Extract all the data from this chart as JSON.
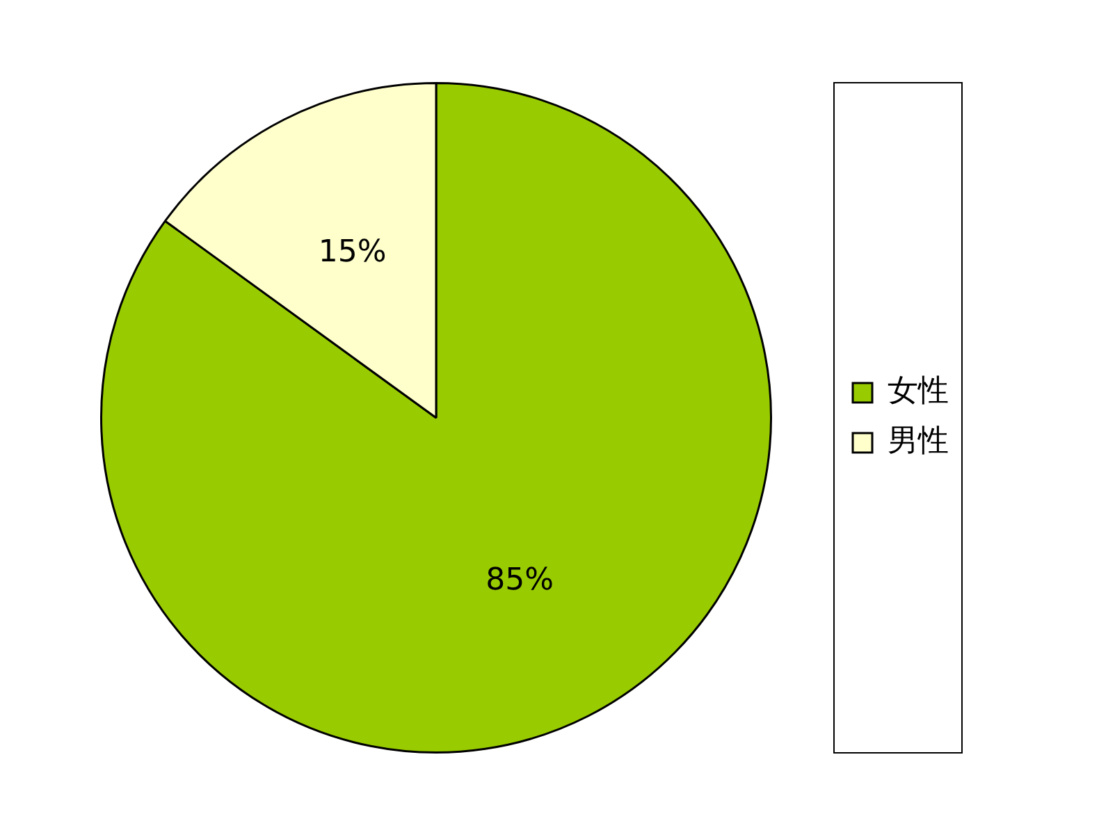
{
  "chart_data": {
    "type": "pie",
    "categories": [
      "女性",
      "男性"
    ],
    "values": [
      85,
      15
    ],
    "colors": [
      "#99cc00",
      "#ffffcc"
    ],
    "value_labels": [
      "85%",
      "15%"
    ],
    "legend": "right"
  }
}
